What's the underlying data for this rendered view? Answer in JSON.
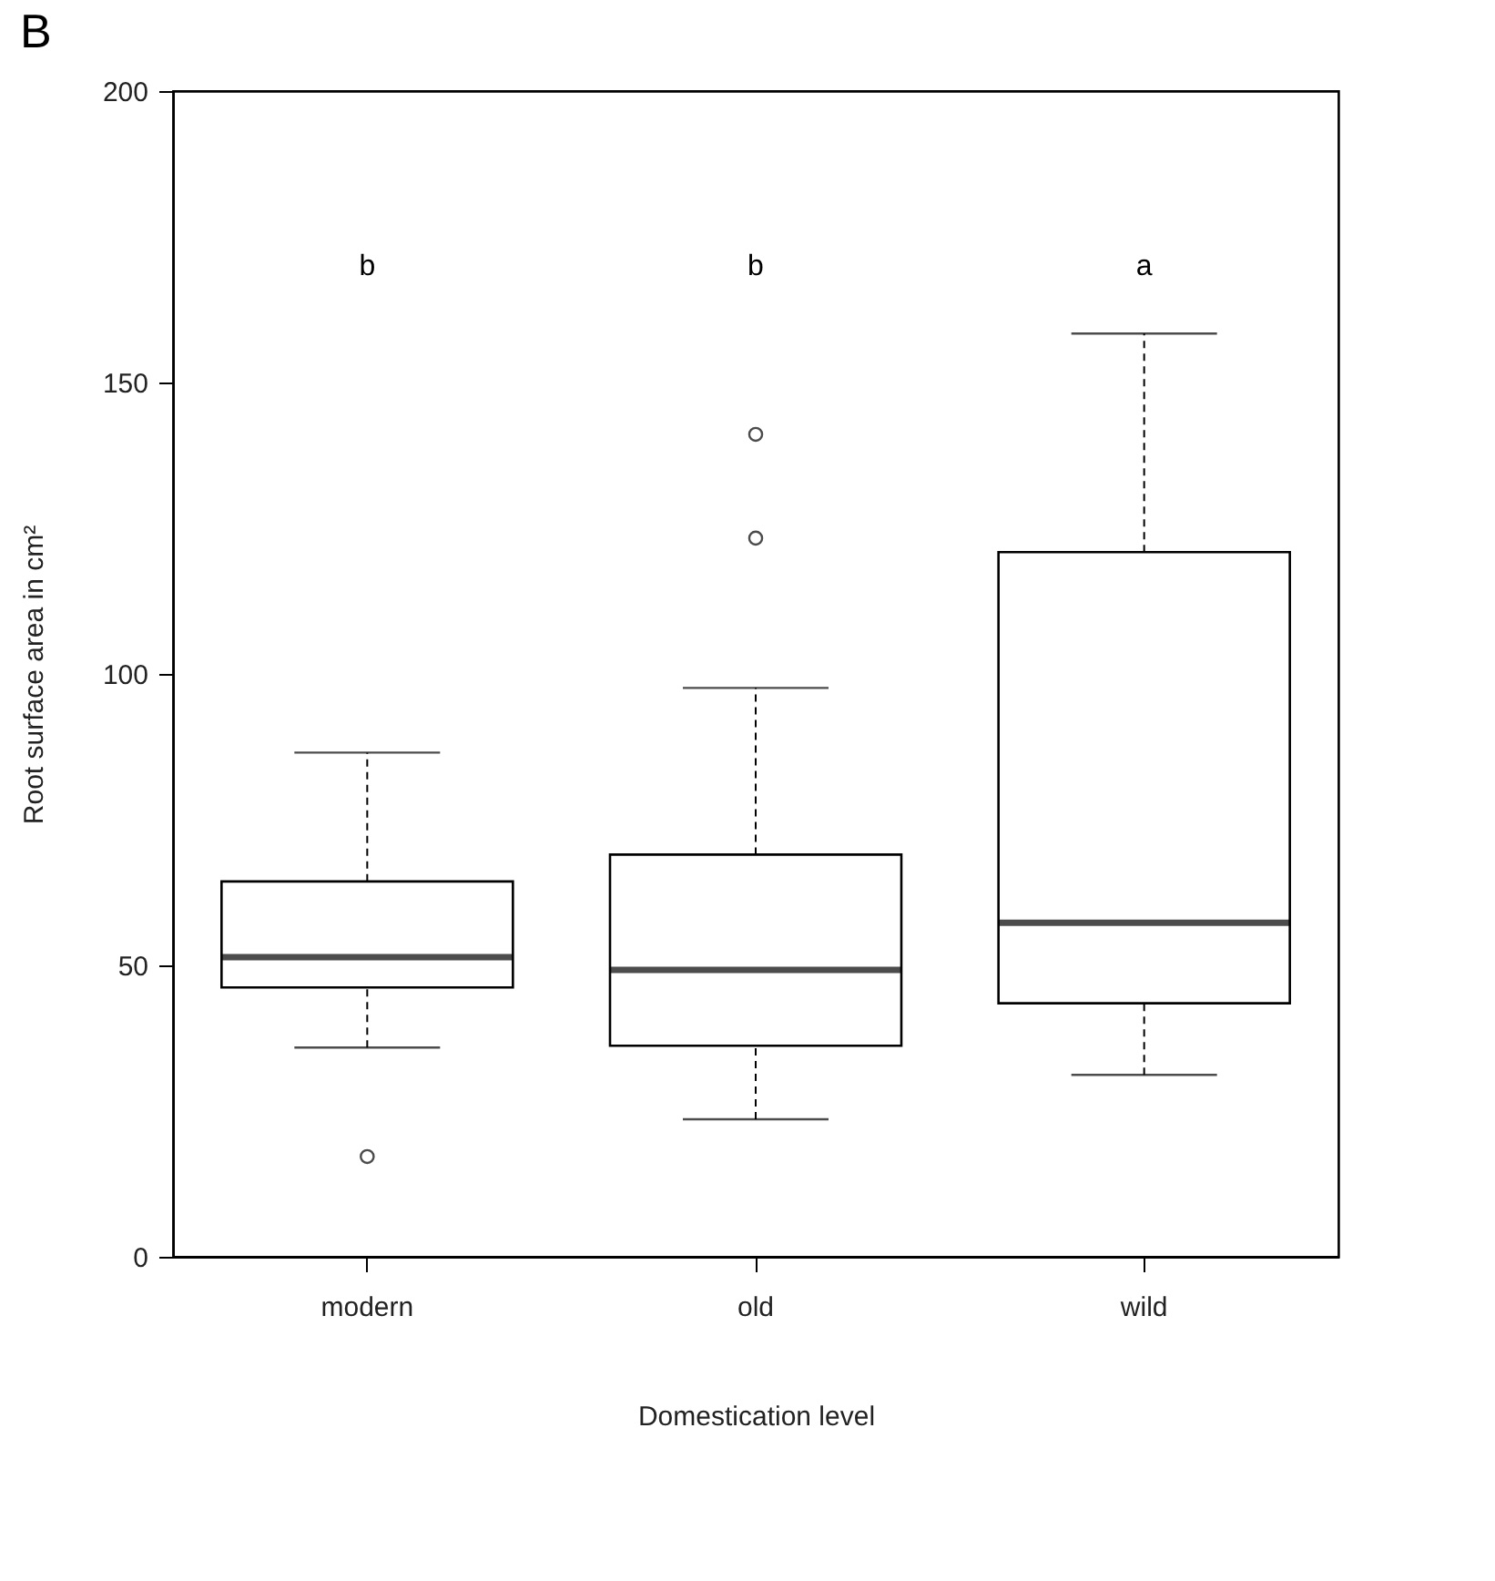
{
  "chart_data": {
    "type": "box",
    "title": "B",
    "xlabel": "Domestication level",
    "ylabel": "Root surface area in cm²",
    "categories": [
      "modern",
      "old",
      "wild"
    ],
    "boxes": [
      {
        "low": 35.9,
        "q1": 46.2,
        "median": 51.4,
        "q3": 64.4,
        "high": 86.5,
        "outliers": [
          17.2
        ]
      },
      {
        "low": 23.6,
        "q1": 36.2,
        "median": 49.2,
        "q3": 69.0,
        "high": 97.6,
        "outliers": [
          123.3,
          141.1
        ]
      },
      {
        "low": 31.2,
        "q1": 43.5,
        "median": 57.3,
        "q3": 120.9,
        "high": 158.4
      }
    ],
    "ylim": [
      0,
      200
    ],
    "yticks": [
      0,
      50,
      100,
      150,
      200
    ],
    "grid": false,
    "annotations": [
      "b",
      "b",
      "a"
    ]
  }
}
